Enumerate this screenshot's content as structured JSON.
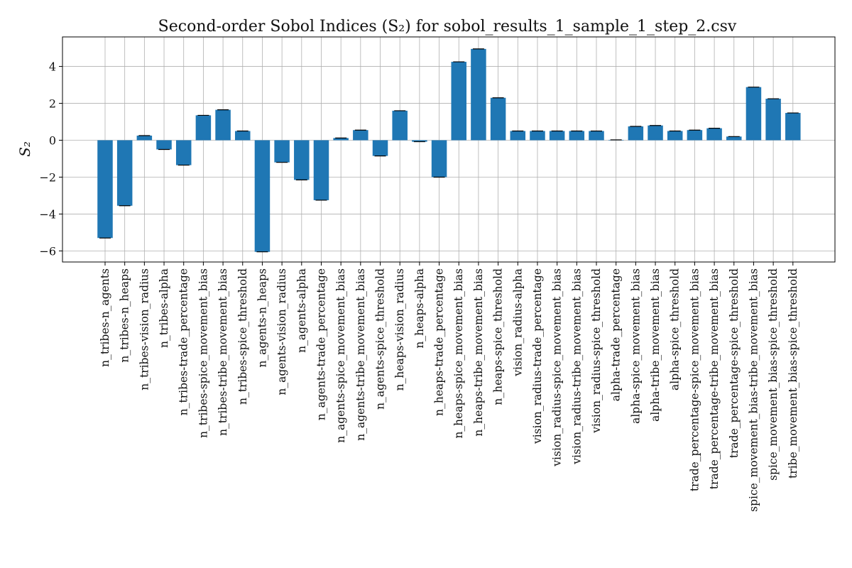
{
  "chart_data": {
    "type": "bar",
    "title": "Second-order Sobol Indices (S₂) for sobol_results_1_sample_1_step_2.csv",
    "ylabel": "S₂",
    "xlabel": "",
    "ylim": [
      -6.6,
      5.6
    ],
    "yticks": [
      -6,
      -4,
      -2,
      0,
      2,
      4
    ],
    "ytick_labels": [
      "−6",
      "−4",
      "−2",
      "0",
      "2",
      "4"
    ],
    "grid": true,
    "bar_color": "#1f77b4",
    "categories": [
      "n_tribes-n_agents",
      "n_tribes-n_heaps",
      "n_tribes-vision_radius",
      "n_tribes-alpha",
      "n_tribes-trade_percentage",
      "n_tribes-spice_movement_bias",
      "n_tribes-tribe_movement_bias",
      "n_tribes-spice_threshold",
      "n_agents-n_heaps",
      "n_agents-vision_radius",
      "n_agents-alpha",
      "n_agents-trade_percentage",
      "n_agents-spice_movement_bias",
      "n_agents-tribe_movement_bias",
      "n_agents-spice_threshold",
      "n_heaps-vision_radius",
      "n_heaps-alpha",
      "n_heaps-trade_percentage",
      "n_heaps-spice_movement_bias",
      "n_heaps-tribe_movement_bias",
      "n_heaps-spice_threshold",
      "vision_radius-alpha",
      "vision_radius-trade_percentage",
      "vision_radius-spice_movement_bias",
      "vision_radius-tribe_movement_bias",
      "vision_radius-spice_threshold",
      "alpha-trade_percentage",
      "alpha-spice_movement_bias",
      "alpha-tribe_movement_bias",
      "alpha-spice_threshold",
      "trade_percentage-spice_movement_bias",
      "trade_percentage-tribe_movement_bias",
      "trade_percentage-spice_threshold",
      "spice_movement_bias-tribe_movement_bias",
      "spice_movement_bias-spice_threshold",
      "tribe_movement_bias-spice_threshold"
    ],
    "values": [
      -5.3,
      -3.55,
      0.25,
      -0.5,
      -1.35,
      1.35,
      1.65,
      0.5,
      -6.05,
      -1.2,
      -2.15,
      -3.25,
      0.12,
      0.55,
      -0.85,
      1.6,
      -0.08,
      -2.0,
      4.25,
      4.95,
      2.3,
      0.5,
      0.5,
      0.5,
      0.5,
      0.5,
      0.02,
      0.75,
      0.8,
      0.5,
      0.55,
      0.65,
      0.2,
      2.88,
      2.25,
      1.48
    ]
  }
}
